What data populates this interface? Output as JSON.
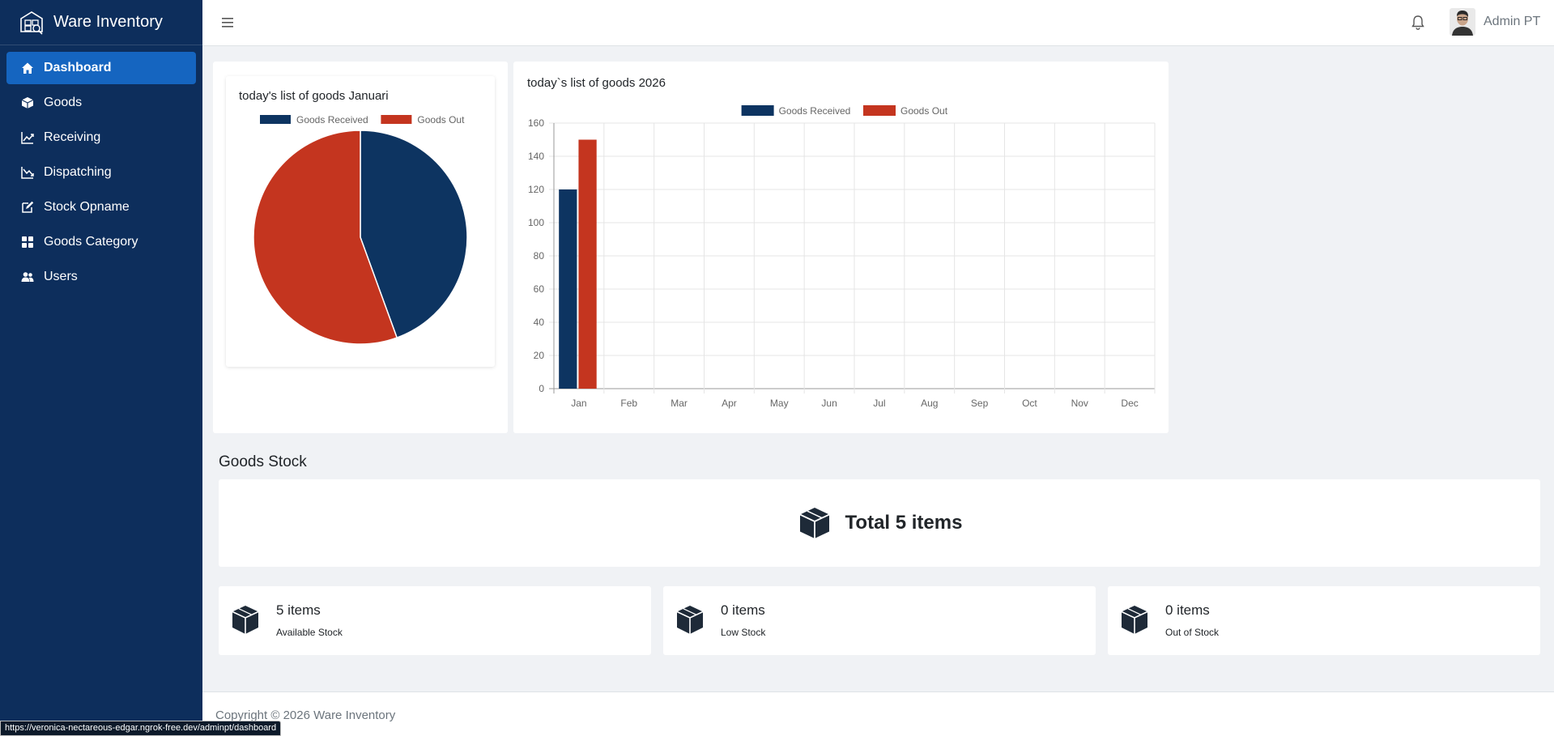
{
  "app": {
    "brand": "Ware Inventory"
  },
  "sidebar": {
    "items": [
      {
        "label": "Dashboard",
        "icon": "home-icon",
        "active": true
      },
      {
        "label": "Goods",
        "icon": "cube-icon",
        "active": false
      },
      {
        "label": "Receiving",
        "icon": "chart-line-up-icon",
        "active": false
      },
      {
        "label": "Dispatching",
        "icon": "chart-line-down-icon",
        "active": false
      },
      {
        "label": "Stock Opname",
        "icon": "edit-icon",
        "active": false
      },
      {
        "label": "Goods Category",
        "icon": "grid-icon",
        "active": false
      },
      {
        "label": "Users",
        "icon": "users-icon",
        "active": false
      }
    ]
  },
  "topbar": {
    "user_name": "Admin PT"
  },
  "pie_chart": {
    "title": "today's list of goods Januari"
  },
  "bar_chart": {
    "title": "today`s list of goods 2026"
  },
  "chart_data": [
    {
      "type": "pie",
      "title": "today's list of goods Januari",
      "labels": [
        "Goods Received",
        "Goods Out"
      ],
      "values": [
        120,
        150
      ],
      "colors": [
        "#0d3461",
        "#c4351f"
      ],
      "legend": "top"
    },
    {
      "type": "bar",
      "title": "today`s list of goods 2026",
      "categories": [
        "Jan",
        "Feb",
        "Mar",
        "Apr",
        "May",
        "Jun",
        "Jul",
        "Aug",
        "Sep",
        "Oct",
        "Nov",
        "Dec"
      ],
      "series": [
        {
          "name": "Goods Received",
          "values": [
            120,
            0,
            0,
            0,
            0,
            0,
            0,
            0,
            0,
            0,
            0,
            0
          ],
          "color": "#0d3461"
        },
        {
          "name": "Goods Out",
          "values": [
            150,
            0,
            0,
            0,
            0,
            0,
            0,
            0,
            0,
            0,
            0,
            0
          ],
          "color": "#c4351f"
        }
      ],
      "yticks": [
        "0",
        "20",
        "40",
        "60",
        "80",
        "100",
        "120",
        "140",
        "160"
      ],
      "ylim": [
        0,
        160
      ],
      "grid": true,
      "legend": "top"
    }
  ],
  "stock": {
    "section_title": "Goods Stock",
    "total_text": "Total 5 items",
    "cards": [
      {
        "value": "5 items",
        "label": "Available Stock"
      },
      {
        "value": "0 items",
        "label": "Low Stock"
      },
      {
        "value": "0 items",
        "label": "Out of Stock"
      }
    ]
  },
  "footer": {
    "text": "Copyright © 2026 Ware Inventory"
  },
  "status_bar": {
    "url": "https://veronica-nectareous-edgar.ngrok-free.dev/adminpt/dashboard"
  },
  "colors": {
    "sidebar_bg": "#0d2e5c",
    "active_item": "#1565c0",
    "received": "#0d3461",
    "out": "#c4351f"
  }
}
